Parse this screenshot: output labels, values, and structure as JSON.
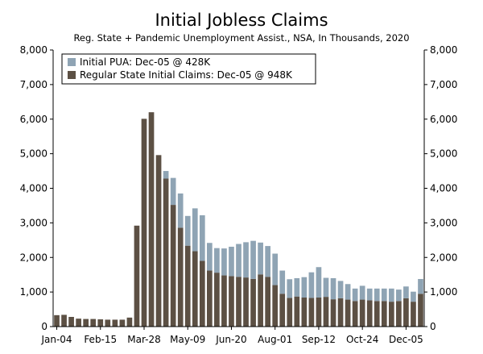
{
  "chart_data": {
    "type": "bar",
    "stacked": true,
    "title": "Initial Jobless Claims",
    "subtitle": "Reg. State + Pandemic Unemployment Assist., NSA, In Thousands, 2020",
    "ylim": [
      0,
      8000
    ],
    "y_ticks": [
      "0",
      "1,000",
      "2,000",
      "3,000",
      "4,000",
      "5,000",
      "6,000",
      "7,000",
      "8,000"
    ],
    "y_tick_values": [
      0,
      1000,
      2000,
      3000,
      4000,
      5000,
      6000,
      7000,
      8000
    ],
    "x_tick_labels": [
      "Jan-04",
      "Feb-15",
      "Mar-28",
      "May-09",
      "Jun-20",
      "Aug-01",
      "Sep-12",
      "Oct-24",
      "Dec-05"
    ],
    "x_tick_indices": [
      0,
      6,
      12,
      18,
      24,
      30,
      36,
      42,
      48
    ],
    "legend": [
      {
        "name": "Initial PUA: Dec-05 @ 428K",
        "color": "#8fa4b4"
      },
      {
        "name": "Regular State Initial Claims: Dec-05 @ 948K",
        "color": "#5c5044"
      }
    ],
    "series": [
      {
        "name": "Regular State Initial Claims",
        "color": "#5c5044",
        "values": [
          330,
          340,
          280,
          230,
          220,
          220,
          210,
          200,
          200,
          200,
          260,
          2920,
          6010,
          6200,
          4960,
          4280,
          3520,
          2860,
          2340,
          2180,
          1900,
          1620,
          1560,
          1480,
          1460,
          1440,
          1420,
          1380,
          1510,
          1440,
          1200,
          950,
          830,
          870,
          840,
          830,
          840,
          860,
          790,
          820,
          780,
          740,
          780,
          760,
          740,
          740,
          720,
          740,
          820,
          720,
          948
        ]
      },
      {
        "name": "Initial PUA",
        "color": "#8fa4b4",
        "values": [
          0,
          0,
          0,
          0,
          0,
          0,
          0,
          0,
          0,
          0,
          0,
          0,
          0,
          0,
          0,
          220,
          780,
          990,
          860,
          1240,
          1320,
          800,
          710,
          780,
          850,
          950,
          1020,
          1100,
          920,
          890,
          910,
          670,
          540,
          530,
          590,
          740,
          880,
          550,
          610,
          500,
          450,
          360,
          400,
          340,
          360,
          360,
          380,
          330,
          340,
          290,
          428
        ]
      }
    ]
  }
}
